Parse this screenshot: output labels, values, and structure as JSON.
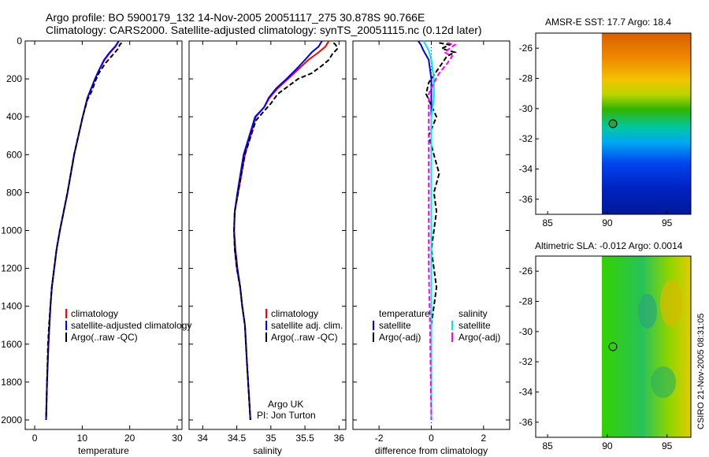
{
  "header": {
    "line1": "Argo profile: BO 5900179_132 14-Nov-2005 20051117_275 30.878S 90.766E",
    "line2": "Climatology: CARS2000. Satellite-adjusted climatology: synTS_20051115.nc (0.12d later)"
  },
  "side_stamp": "CSIRO 21-Nov-2005 08:31:05",
  "colors": {
    "clim": "#ff0000",
    "sat": "#0000ff",
    "argo": "#000000",
    "sal_sat": "#00e5ee",
    "sal_argo": "#ff00ff"
  },
  "chart_data": [
    {
      "id": "temperature",
      "type": "line",
      "xlabel": "temperature",
      "xlim": [
        -2,
        31
      ],
      "ylim": [
        2050,
        0
      ],
      "xticks": [
        0,
        10,
        20,
        30
      ],
      "yticks": [
        0,
        200,
        400,
        600,
        800,
        1000,
        1200,
        1400,
        1600,
        1800,
        2000
      ],
      "legend": [
        "climatology",
        "satellite-adjusted climatology",
        "Argo(..raw -QC)"
      ],
      "series": [
        {
          "name": "climatology",
          "color": "#ff0000",
          "dash": "",
          "x": [
            17.7,
            17.0,
            15.9,
            14.7,
            13.6,
            12.7,
            11.9,
            11.1,
            10.1,
            8.3,
            6.9,
            5.3,
            4.6,
            4.1,
            3.6,
            3.3,
            3.1,
            2.9,
            2.6,
            2.4
          ],
          "y": [
            0,
            30,
            60,
            100,
            150,
            200,
            250,
            300,
            400,
            600,
            800,
            1000,
            1100,
            1200,
            1300,
            1400,
            1500,
            1600,
            1800,
            2000
          ]
        },
        {
          "name": "satellite-adjusted climatology",
          "color": "#0000ff",
          "dash": "",
          "x": [
            17.7,
            16.9,
            15.8,
            14.6,
            13.6,
            12.7,
            11.9,
            11.1,
            10.1,
            8.3,
            6.9,
            5.3,
            4.6,
            4.1,
            3.6,
            3.3,
            3.1,
            2.9,
            2.6,
            2.4
          ],
          "y": [
            0,
            30,
            60,
            100,
            150,
            200,
            250,
            300,
            400,
            600,
            800,
            1000,
            1100,
            1200,
            1300,
            1400,
            1500,
            1600,
            1800,
            2000
          ]
        },
        {
          "name": "Argo(..raw -QC)",
          "color": "#000000",
          "dash": "6,3",
          "x": [
            18.3,
            17.9,
            17.6,
            16.2,
            14.8,
            13.5,
            12.8,
            12.1,
            11.1,
            10.1,
            8.3,
            6.9,
            5.3,
            4.6,
            4.1,
            3.6,
            3.3,
            3.0,
            2.8,
            2.6,
            2.4
          ],
          "y": [
            10,
            20,
            40,
            80,
            120,
            170,
            210,
            260,
            310,
            400,
            600,
            800,
            1000,
            1100,
            1200,
            1300,
            1400,
            1500,
            1600,
            1800,
            2000
          ]
        }
      ]
    },
    {
      "id": "salinity",
      "type": "line",
      "xlabel": "salinity",
      "xlim": [
        33.8,
        36.1
      ],
      "ylim": [
        2050,
        0
      ],
      "xticks": [
        34,
        34.5,
        35,
        35.5,
        36
      ],
      "yticks": [
        0,
        200,
        400,
        600,
        800,
        1000,
        1200,
        1400,
        1600,
        1800,
        2000
      ],
      "legend": [
        "climatology",
        "satellite adj. clim.",
        "Argo(..raw -QC)"
      ],
      "annotation": [
        "Argo UK",
        "PI: Jon Turton"
      ],
      "series": [
        {
          "name": "climatology",
          "color": "#ff0000",
          "dash": "",
          "x": [
            35.85,
            35.8,
            35.7,
            35.55,
            35.4,
            35.25,
            35.1,
            34.98,
            34.9,
            34.78,
            34.62,
            34.52,
            34.47,
            34.46,
            34.47,
            34.5,
            34.55,
            34.58,
            34.62,
            34.65,
            34.7
          ],
          "y": [
            0,
            30,
            60,
            100,
            150,
            200,
            250,
            300,
            350,
            400,
            600,
            800,
            900,
            1000,
            1100,
            1200,
            1300,
            1400,
            1500,
            1700,
            2000
          ]
        },
        {
          "name": "satellite adj. clim.",
          "color": "#0000ff",
          "dash": "",
          "x": [
            35.75,
            35.7,
            35.6,
            35.5,
            35.37,
            35.23,
            35.08,
            34.97,
            34.9,
            34.77,
            34.6,
            34.51,
            34.47,
            34.46,
            34.48,
            34.51,
            34.55,
            34.58,
            34.62,
            34.65,
            34.7
          ],
          "y": [
            0,
            30,
            60,
            100,
            150,
            200,
            250,
            300,
            350,
            400,
            600,
            800,
            900,
            1000,
            1100,
            1200,
            1300,
            1400,
            1500,
            1700,
            2000
          ]
        },
        {
          "name": "Argo(..raw -QC)",
          "color": "#000000",
          "dash": "6,3",
          "x": [
            35.92,
            35.95,
            35.98,
            35.9,
            35.85,
            35.75,
            35.6,
            35.4,
            35.25,
            35.1,
            35.0,
            34.9,
            34.78,
            34.62,
            34.52,
            34.47,
            34.46,
            34.47,
            34.5,
            34.55,
            34.58,
            34.62,
            34.65,
            34.7
          ],
          "y": [
            10,
            20,
            40,
            70,
            100,
            130,
            170,
            200,
            240,
            280,
            330,
            370,
            420,
            600,
            800,
            900,
            1000,
            1100,
            1200,
            1300,
            1400,
            1500,
            1700,
            2000
          ]
        }
      ]
    },
    {
      "id": "difference",
      "type": "line",
      "xlabel": "difference from climatology",
      "xlim": [
        -3,
        3
      ],
      "ylim": [
        2050,
        0
      ],
      "xticks": [
        -2,
        0,
        2
      ],
      "yticks": [
        0,
        200,
        400,
        600,
        800,
        1000,
        1200,
        1400,
        1600,
        1800,
        2000
      ],
      "legend_groups": [
        {
          "header": "temperature",
          "items": [
            "satellite",
            "Argo(-adj)"
          ]
        },
        {
          "header": "salinity",
          "items": [
            "satellite",
            "Argo(-adj)"
          ]
        }
      ],
      "series": [
        {
          "name": "temperature satellite",
          "color": "#0000ff",
          "dash": "",
          "x": [
            -0.5,
            -0.4,
            -0.3,
            -0.1,
            0,
            0,
            0,
            0,
            0,
            0,
            0,
            0,
            0,
            0
          ],
          "y": [
            0,
            20,
            50,
            100,
            200,
            300,
            400,
            600,
            800,
            1000,
            1200,
            1400,
            1600,
            2000
          ]
        },
        {
          "name": "temperature Argo(-adj)",
          "color": "#000000",
          "dash": "6,3",
          "x": [
            0.3,
            0.7,
            0.4,
            0.9,
            0.6,
            0.4,
            0.2,
            -0.1,
            -0.2,
            0,
            0.2,
            -0.1,
            0.1,
            0.3,
            0.1,
            0.2,
            0.1,
            0,
            0.1,
            0.2,
            0,
            0
          ],
          "y": [
            10,
            20,
            40,
            60,
            80,
            120,
            160,
            220,
            280,
            340,
            400,
            500,
            600,
            700,
            800,
            900,
            1000,
            1100,
            1200,
            1300,
            1500,
            2000
          ]
        },
        {
          "name": "salinity satellite",
          "color": "#00e5ee",
          "dash": "",
          "x": [
            -0.3,
            -0.1,
            0,
            0.1,
            0.1,
            0,
            0,
            0,
            0,
            0,
            0,
            0,
            0
          ],
          "y": [
            0,
            50,
            100,
            200,
            300,
            400,
            600,
            800,
            1000,
            1200,
            1400,
            1600,
            2000
          ]
        },
        {
          "name": "salinity Argo(-adj)",
          "color": "#ff00ff",
          "dash": "6,3",
          "x": [
            0.6,
            0.9,
            0.7,
            0.5,
            0.8,
            0.6,
            0.3,
            0.1,
            -0.1,
            -0.1,
            -0.1,
            -0.05,
            0
          ],
          "y": [
            10,
            20,
            40,
            60,
            80,
            120,
            170,
            220,
            280,
            900,
            1200,
            1500,
            2000
          ]
        }
      ]
    },
    {
      "id": "sst_map",
      "type": "heatmap",
      "title": "AMSR-E SST: 17.7 Argo: 18.4",
      "xlim": [
        84,
        97
      ],
      "ylim": [
        -37,
        -25
      ],
      "xticks": [
        85,
        90,
        95
      ],
      "yticks": [
        -26,
        -28,
        -30,
        -32,
        -34,
        -36
      ],
      "data_xlim": [
        90,
        97
      ],
      "argo_position": {
        "lon": 90.766,
        "lat": -30.878
      }
    },
    {
      "id": "sla_map",
      "type": "heatmap",
      "title": "Altimetric SLA: -0.012 Argo: 0.0014",
      "xlim": [
        84,
        97
      ],
      "ylim": [
        -37,
        -25
      ],
      "xticks": [
        85,
        90,
        95
      ],
      "yticks": [
        -26,
        -28,
        -30,
        -32,
        -34,
        -36
      ],
      "data_xlim": [
        90,
        97
      ],
      "argo_position": {
        "lon": 90.766,
        "lat": -30.878
      }
    }
  ]
}
